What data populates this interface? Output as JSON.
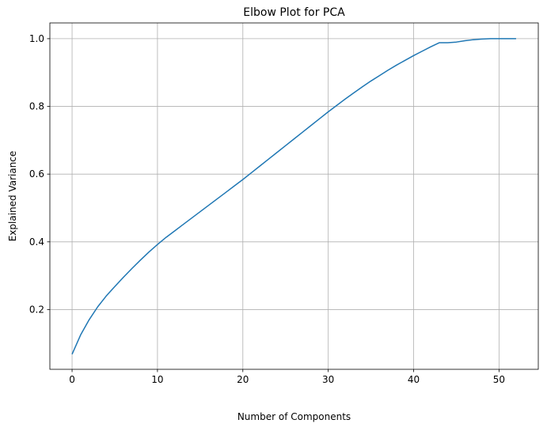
{
  "chart_data": {
    "type": "line",
    "title": "Elbow Plot for PCA",
    "xlabel": "Number of Components",
    "ylabel": "Explained Variance",
    "xlim": [
      -2.6,
      54.6
    ],
    "ylim": [
      0.0235,
      1.0465
    ],
    "xticks": [
      0,
      10,
      20,
      30,
      40,
      50
    ],
    "yticks": [
      0.2,
      0.4,
      0.6,
      0.8,
      1.0
    ],
    "xtick_labels": [
      "0",
      "10",
      "20",
      "30",
      "40",
      "50"
    ],
    "ytick_labels": [
      "0.2",
      "0.4",
      "0.6",
      "0.8",
      "1.0"
    ],
    "grid": true,
    "series": [
      {
        "color": "#1f77b4",
        "x": [
          0,
          1,
          2,
          3,
          4,
          5,
          6,
          7,
          8,
          9,
          10,
          11,
          12,
          13,
          14,
          15,
          16,
          17,
          18,
          19,
          20,
          21,
          22,
          23,
          24,
          25,
          26,
          27,
          28,
          29,
          30,
          31,
          32,
          33,
          34,
          35,
          36,
          37,
          38,
          39,
          40,
          41,
          42,
          43,
          44,
          45,
          46,
          47,
          48,
          49,
          50,
          51,
          52
        ],
        "values": [
          0.068,
          0.125,
          0.17,
          0.208,
          0.24,
          0.268,
          0.295,
          0.321,
          0.346,
          0.37,
          0.392,
          0.413,
          0.432,
          0.451,
          0.47,
          0.489,
          0.508,
          0.527,
          0.546,
          0.565,
          0.584,
          0.604,
          0.624,
          0.644,
          0.664,
          0.684,
          0.704,
          0.724,
          0.744,
          0.764,
          0.784,
          0.803,
          0.822,
          0.84,
          0.858,
          0.875,
          0.891,
          0.907,
          0.922,
          0.936,
          0.95,
          0.963,
          0.976,
          0.988,
          0.988,
          0.99,
          0.994,
          0.997,
          0.999,
          1.0,
          1.0,
          1.0,
          1.0
        ]
      }
    ]
  }
}
